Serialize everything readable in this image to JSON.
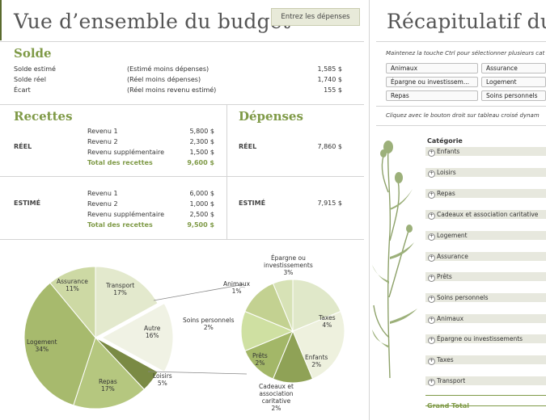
{
  "dashboard": {
    "title": "Vue d’ensemble du budget",
    "enter_button": "Entrez les dépenses",
    "solde": {
      "heading": "Solde",
      "rows": [
        {
          "label": "Solde estimé",
          "desc": "(Estimé moins dépenses)",
          "amount": "1,585 $"
        },
        {
          "label": "Solde réel",
          "desc": "(Réel moins dépenses)",
          "amount": "1,740 $"
        },
        {
          "label": "Écart",
          "desc": "(Réel moins revenu estimé)",
          "amount": "155 $"
        }
      ]
    },
    "recettes": {
      "heading": "Recettes",
      "reel": {
        "label": "RÉEL",
        "rows": [
          {
            "label": "Revenu 1",
            "amount": "5,800 $"
          },
          {
            "label": "Revenu 2",
            "amount": "2,300 $"
          },
          {
            "label": "Revenu supplémentaire",
            "amount": "1,500 $"
          }
        ],
        "total_label": "Total des recettes",
        "total": "9,600 $"
      },
      "estime": {
        "label": "ESTIMÉ",
        "rows": [
          {
            "label": "Revenu 1",
            "amount": "6,000 $"
          },
          {
            "label": "Revenu 2",
            "amount": "1,000 $"
          },
          {
            "label": "Revenu supplémentaire",
            "amount": "2,500 $"
          }
        ],
        "total_label": "Total des recettes",
        "total": "9,500 $"
      }
    },
    "depenses": {
      "heading": "Dépenses",
      "reel": {
        "label": "RÉEL",
        "amount": "7,860 $"
      },
      "estime": {
        "label": "ESTIMÉ",
        "amount": "7,915 $"
      }
    },
    "pie_labels": {
      "transport": {
        "name": "Transport",
        "pct": "17%"
      },
      "assurance": {
        "name": "Assurance",
        "pct": "11%"
      },
      "logement": {
        "name": "Logement",
        "pct": "34%"
      },
      "repas": {
        "name": "Repas",
        "pct": "17%"
      },
      "loisirs": {
        "name": "Loisirs",
        "pct": "5%"
      },
      "autre": {
        "name": "Autre",
        "pct": "16%"
      },
      "epargne": {
        "name": "Épargne ou",
        "name2": "investissements",
        "pct": "3%"
      },
      "animaux": {
        "name": "Animaux",
        "pct": "1%"
      },
      "soins": {
        "name": "Soins personnels",
        "pct": "2%"
      },
      "taxes": {
        "name": "Taxes",
        "pct": "4%"
      },
      "prets": {
        "name": "Prêts",
        "pct": "2%"
      },
      "enfants": {
        "name": "Enfants",
        "pct": "2%"
      },
      "cadeaux": {
        "name": "Cadeaux et",
        "name2": "association",
        "name3": "caritative",
        "pct": "2%"
      }
    }
  },
  "recap": {
    "title": "Récapitulatif du b",
    "ctrl_note": "Maintenez la touche Ctrl pour sélectionner plusieurs cat",
    "slicers": [
      "Animaux",
      "Assurance",
      "Épargne ou investissem...",
      "Logement",
      "Repas",
      "Soins personnels"
    ],
    "pivot_note": "Cliquez avec le bouton droit sur tableau croisé dynam",
    "pivot_header": "Catégorie",
    "pivot_rows": [
      "Enfants",
      "Loisirs",
      "Repas",
      "Cadeaux et association caritative",
      "Logement",
      "Assurance",
      "Prêts",
      "Soins personnels",
      "Animaux",
      "Épargne ou investissements",
      "Taxes",
      "Transport"
    ],
    "grand_total": "Grand Total"
  },
  "colors": {
    "accent": "#7f9a47",
    "title_gray": "#555555",
    "slicer_bg": "#fafafa",
    "pivot_row_bg": "#e7e8de"
  },
  "chart_data": [
    {
      "type": "pie",
      "categories": [
        "Transport",
        "Autre",
        "Loisirs",
        "Repas",
        "Logement",
        "Assurance"
      ],
      "values": [
        17,
        16,
        5,
        17,
        34,
        11
      ]
    },
    {
      "type": "pie",
      "categories": [
        "Épargne ou investissements",
        "Taxes",
        "Enfants",
        "Cadeaux et association caritative",
        "Prêts",
        "Soins personnels",
        "Animaux"
      ],
      "values": [
        3,
        4,
        2,
        2,
        2,
        2,
        1
      ]
    }
  ]
}
